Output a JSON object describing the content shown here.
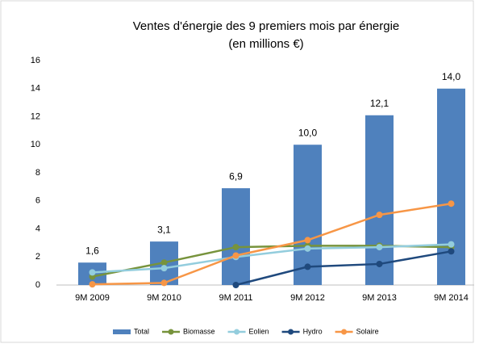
{
  "chart_data": {
    "type": "bar",
    "title": "Ventes d'énergie des 9 premiers mois par énergie",
    "subtitle": "(en millions €)",
    "categories": [
      "9M 2009",
      "9M 2010",
      "9M 2011",
      "9M 2012",
      "9M 2013",
      "9M 2014"
    ],
    "series": [
      {
        "name": "Total",
        "type": "bar",
        "color": "#4f81bd",
        "values": [
          1.6,
          3.1,
          6.9,
          10.0,
          12.1,
          14.0
        ],
        "value_labels": [
          "1,6",
          "3,1",
          "6,9",
          "10,0",
          "12,1",
          "14,0"
        ]
      },
      {
        "name": "Biomasse",
        "type": "line",
        "color": "#77933c",
        "values": [
          0.6,
          1.6,
          2.7,
          2.8,
          2.8,
          2.7
        ]
      },
      {
        "name": "Eolien",
        "type": "line",
        "color": "#93cddd",
        "values": [
          0.9,
          1.2,
          2.0,
          2.6,
          2.7,
          2.9
        ]
      },
      {
        "name": "Hydro",
        "type": "line",
        "color": "#1f497d",
        "values": [
          null,
          null,
          0.0,
          1.3,
          1.5,
          2.4
        ]
      },
      {
        "name": "Solaire",
        "type": "line",
        "color": "#f79646",
        "values": [
          0.05,
          0.15,
          2.1,
          3.2,
          5.0,
          5.8
        ]
      }
    ],
    "ylim": [
      0,
      16
    ],
    "yticks": [
      0,
      2,
      4,
      6,
      8,
      10,
      12,
      14,
      16
    ],
    "grid": false,
    "legend": "bottom"
  }
}
